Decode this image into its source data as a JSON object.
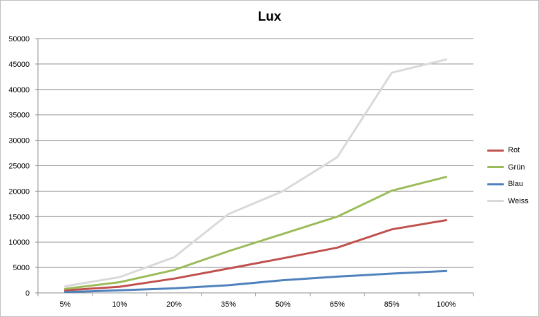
{
  "chart_data": {
    "type": "line",
    "title": "Lux",
    "xlabel": "",
    "ylabel": "",
    "categories": [
      "5%",
      "10%",
      "20%",
      "35%",
      "50%",
      "65%",
      "85%",
      "100%"
    ],
    "ylim": [
      0,
      50000
    ],
    "yticks": [
      0,
      5000,
      10000,
      15000,
      20000,
      25000,
      30000,
      35000,
      40000,
      45000,
      50000
    ],
    "grid": true,
    "legend_position": "right",
    "series": [
      {
        "name": "Rot",
        "color": "#c0504d",
        "values": [
          500,
          1200,
          2800,
          4800,
          6800,
          8900,
          12500,
          14300
        ]
      },
      {
        "name": "Grün",
        "color": "#9bbb59",
        "values": [
          800,
          2100,
          4500,
          8200,
          11600,
          15000,
          20100,
          22800
        ]
      },
      {
        "name": "Blau",
        "color": "#4f81bd",
        "values": [
          150,
          500,
          900,
          1500,
          2500,
          3200,
          3800,
          4300
        ]
      },
      {
        "name": "Weiss",
        "color": "#d9d9d9",
        "values": [
          1300,
          3100,
          7000,
          15500,
          20000,
          26700,
          43300,
          45900
        ]
      }
    ]
  }
}
